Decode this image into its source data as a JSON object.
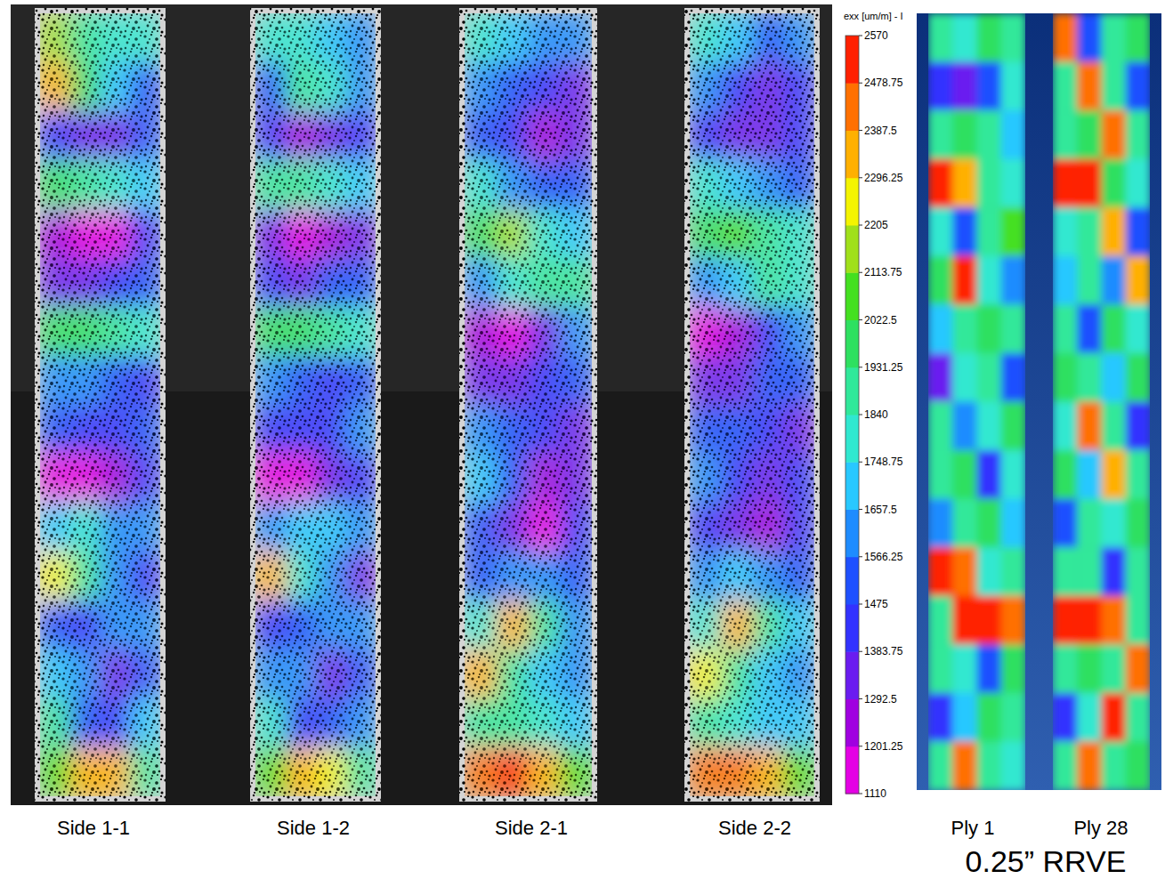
{
  "chart_data": {
    "type": "heatmap",
    "colorbar": {
      "label": "exx [um/m] - I",
      "range": [
        1110,
        2570
      ],
      "ticks": [
        1110,
        1201.25,
        1292.5,
        1383.75,
        1475,
        1566.25,
        1657.5,
        1748.75,
        1840,
        1931.25,
        2022.5,
        2113.75,
        2205,
        2296.25,
        2387.5,
        2478.75,
        2570
      ]
    },
    "dic_panels": [
      {
        "title": "Side 1-1",
        "cells": [
          [
            2150,
            1900,
            1800,
            1780
          ],
          [
            2300,
            1950,
            1700,
            1500
          ],
          [
            1450,
            1300,
            1350,
            1500
          ],
          [
            1950,
            1850,
            1750,
            1700
          ],
          [
            1250,
            1150,
            1200,
            1400
          ],
          [
            1350,
            1300,
            1450,
            1500
          ],
          [
            1950,
            2000,
            1900,
            1800
          ],
          [
            1650,
            1600,
            1500,
            1450
          ],
          [
            1500,
            1450,
            1400,
            1550
          ],
          [
            1150,
            1200,
            1250,
            1400
          ],
          [
            1700,
            1750,
            1650,
            1600
          ],
          [
            2250,
            1850,
            1650,
            1400
          ],
          [
            1500,
            1450,
            1600,
            1650
          ],
          [
            1700,
            1650,
            1300,
            1550
          ],
          [
            1850,
            1500,
            1450,
            1700
          ],
          [
            2100,
            2350,
            2300,
            1900
          ]
        ]
      },
      {
        "title": "Side 1-2",
        "cells": [
          [
            1800,
            1750,
            1700,
            1650
          ],
          [
            1500,
            1850,
            1750,
            1600
          ],
          [
            1400,
            1250,
            1300,
            1450
          ],
          [
            1900,
            1850,
            1800,
            1700
          ],
          [
            1300,
            1200,
            1250,
            1350
          ],
          [
            1400,
            1350,
            1500,
            1550
          ],
          [
            2000,
            1950,
            1850,
            1800
          ],
          [
            1600,
            1500,
            1450,
            1500
          ],
          [
            1450,
            1400,
            1450,
            1600
          ],
          [
            1200,
            1150,
            1300,
            1450
          ],
          [
            1650,
            1700,
            1700,
            1600
          ],
          [
            2300,
            1800,
            1600,
            1350
          ],
          [
            1450,
            1500,
            1650,
            1600
          ],
          [
            1650,
            1600,
            1350,
            1500
          ],
          [
            1800,
            1450,
            1500,
            1650
          ],
          [
            2050,
            2300,
            2250,
            1850
          ]
        ]
      },
      {
        "title": "Side 2-1",
        "cells": [
          [
            1800,
            1700,
            1600,
            1650
          ],
          [
            1650,
            1500,
            1400,
            1350
          ],
          [
            1500,
            1400,
            1250,
            1350
          ],
          [
            1750,
            1650,
            1550,
            1500
          ],
          [
            1950,
            2150,
            1800,
            1700
          ],
          [
            1650,
            1750,
            1900,
            1850
          ],
          [
            1250,
            1200,
            1350,
            1600
          ],
          [
            1350,
            1300,
            1450,
            1500
          ],
          [
            1600,
            1550,
            1400,
            1300
          ],
          [
            1700,
            1500,
            1250,
            1350
          ],
          [
            1500,
            1350,
            1200,
            1400
          ],
          [
            1550,
            1650,
            1600,
            1500
          ],
          [
            1750,
            2350,
            1900,
            1650
          ],
          [
            2300,
            1900,
            1700,
            1600
          ],
          [
            1900,
            1850,
            1750,
            1700
          ],
          [
            2450,
            2500,
            2350,
            2100
          ]
        ]
      },
      {
        "title": "Side 2-2",
        "cells": [
          [
            1750,
            1700,
            1550,
            1650
          ],
          [
            1600,
            1450,
            1350,
            1400
          ],
          [
            1450,
            1350,
            1300,
            1400
          ],
          [
            1800,
            1700,
            1600,
            1550
          ],
          [
            2000,
            2100,
            1850,
            1750
          ],
          [
            1600,
            1700,
            1850,
            1800
          ],
          [
            1200,
            1250,
            1400,
            1650
          ],
          [
            1350,
            1350,
            1500,
            1550
          ],
          [
            1550,
            1500,
            1400,
            1350
          ],
          [
            1650,
            1450,
            1300,
            1400
          ],
          [
            1450,
            1300,
            1250,
            1450
          ],
          [
            1600,
            1700,
            1650,
            1550
          ],
          [
            1800,
            2300,
            1850,
            1700
          ],
          [
            2250,
            1850,
            1700,
            1650
          ],
          [
            1850,
            1800,
            1700,
            1700
          ],
          [
            2400,
            2450,
            2300,
            2050
          ]
        ]
      }
    ],
    "ply_panels": [
      {
        "title": "Ply 1",
        "cells": [
          [
            1900,
            1800,
            1950,
            1850
          ],
          [
            1400,
            1300,
            1500,
            1800
          ],
          [
            1850,
            2000,
            1900,
            1700
          ],
          [
            2500,
            2300,
            1900,
            1800
          ],
          [
            1800,
            1500,
            1900,
            2100
          ],
          [
            1950,
            2550,
            1800,
            1600
          ],
          [
            1700,
            1900,
            2000,
            1850
          ],
          [
            1300,
            1750,
            1900,
            1500
          ],
          [
            1850,
            1600,
            1750,
            2000
          ],
          [
            1900,
            2000,
            1400,
            1800
          ],
          [
            1600,
            1850,
            1950,
            1700
          ],
          [
            2500,
            2450,
            1800,
            1900
          ],
          [
            1850,
            2550,
            2500,
            2400
          ],
          [
            1900,
            1800,
            1500,
            1950
          ],
          [
            1400,
            1700,
            1950,
            1850
          ],
          [
            1850,
            2400,
            1900,
            1800
          ]
        ]
      },
      {
        "title": "Ply 28",
        "cells": [
          [
            2400,
            1500,
            1900,
            2000
          ],
          [
            1850,
            2450,
            1850,
            1500
          ],
          [
            1900,
            1950,
            2400,
            1900
          ],
          [
            2550,
            2500,
            1950,
            1800
          ],
          [
            1800,
            1900,
            2300,
            1500
          ],
          [
            1700,
            1850,
            1600,
            2350
          ],
          [
            1900,
            1500,
            1950,
            1800
          ],
          [
            2000,
            1850,
            1700,
            1950
          ],
          [
            1800,
            2450,
            1900,
            1450
          ],
          [
            1950,
            1700,
            2350,
            1850
          ],
          [
            1500,
            1900,
            1800,
            2000
          ],
          [
            1850,
            1900,
            1400,
            1900
          ],
          [
            2550,
            2500,
            2450,
            1850
          ],
          [
            1900,
            1950,
            1850,
            2400
          ],
          [
            1400,
            1800,
            2500,
            1900
          ],
          [
            1900,
            2400,
            1850,
            1950
          ]
        ]
      }
    ],
    "caption": "0.25” RRVE"
  }
}
